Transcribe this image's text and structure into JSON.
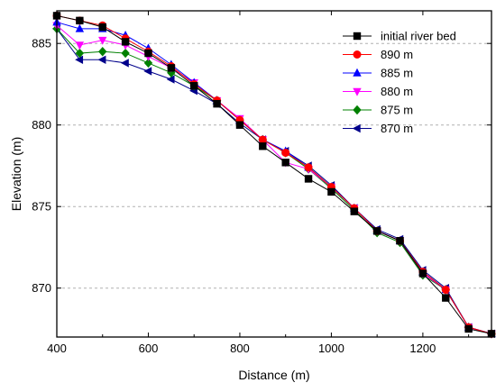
{
  "chart_data": {
    "type": "line",
    "xlabel": "Distance (m)",
    "ylabel": "Elevation (m)",
    "xlim": [
      400,
      1350
    ],
    "ylim": [
      867,
      887
    ],
    "xticks": [
      400,
      600,
      800,
      1000,
      1200
    ],
    "yticks": [
      870,
      875,
      880,
      885
    ],
    "grid": "horizontal dashed",
    "legend_position": "top-right",
    "series": [
      {
        "name": "initial river bed",
        "color": "#000000",
        "marker": "square",
        "x": [
          400,
          450,
          500,
          550,
          600,
          650,
          700,
          750,
          800,
          850,
          900,
          950,
          1000,
          1050,
          1100,
          1150,
          1200,
          1250,
          1300,
          1350
        ],
        "y": [
          886.7,
          886.4,
          886.0,
          885.1,
          884.4,
          883.5,
          882.4,
          881.3,
          880.0,
          878.7,
          877.7,
          876.7,
          875.9,
          874.7,
          873.5,
          872.9,
          870.9,
          869.4,
          867.5,
          867.2
        ]
      },
      {
        "name": "890 m",
        "color": "#ff0000",
        "marker": "circle",
        "x": [
          400,
          450,
          500,
          550,
          600,
          650,
          700,
          750,
          800,
          850,
          900,
          950,
          1000,
          1050,
          1100,
          1150,
          1200,
          1250,
          1300,
          1350
        ],
        "y": [
          886.7,
          886.4,
          886.1,
          885.3,
          884.5,
          883.6,
          882.5,
          881.5,
          880.3,
          879.1,
          878.3,
          877.4,
          876.2,
          874.9,
          873.5,
          872.9,
          871.0,
          869.9,
          867.6,
          867.2
        ]
      },
      {
        "name": "885 m",
        "color": "#0000ff",
        "marker": "triangle-up",
        "x": [
          400,
          450,
          500,
          550,
          600,
          650,
          700,
          750,
          800,
          850,
          900,
          950,
          1000,
          1050,
          1100,
          1150,
          1200,
          1250,
          1300,
          1350
        ],
        "y": [
          886.3,
          885.9,
          885.9,
          885.5,
          884.7,
          883.7,
          882.6,
          881.5,
          880.3,
          879.1,
          878.4,
          877.4,
          876.2,
          874.9,
          873.5,
          872.9,
          871.0,
          869.9,
          867.6,
          867.2
        ]
      },
      {
        "name": "880 m",
        "color": "#ff00ff",
        "marker": "triangle-down",
        "x": [
          400,
          450,
          500,
          550,
          600,
          650,
          700,
          750,
          800,
          850,
          900,
          950,
          1000,
          1050,
          1100,
          1150,
          1200,
          1250,
          1300,
          1350
        ],
        "y": [
          886.1,
          884.9,
          885.2,
          884.9,
          884.2,
          883.5,
          882.6,
          881.5,
          880.4,
          879.1,
          877.7,
          877.3,
          876.2,
          874.9,
          873.5,
          872.9,
          870.9,
          869.9,
          867.6,
          867.2
        ]
      },
      {
        "name": "875 m",
        "color": "#008000",
        "marker": "diamond",
        "x": [
          400,
          450,
          500,
          550,
          600,
          650,
          700,
          750,
          800,
          850,
          900,
          950,
          1000,
          1050,
          1100,
          1150,
          1200,
          1250,
          1300,
          1350
        ],
        "y": [
          885.9,
          884.4,
          884.5,
          884.4,
          883.8,
          883.2,
          882.4,
          881.5,
          880.3,
          879.1,
          878.3,
          877.3,
          876.1,
          874.8,
          873.4,
          872.8,
          870.8,
          869.9,
          867.6,
          867.2
        ]
      },
      {
        "name": "870 m",
        "color": "#00008b",
        "marker": "triangle-left",
        "x": [
          400,
          450,
          500,
          550,
          600,
          650,
          700,
          750,
          800,
          850,
          900,
          950,
          1000,
          1050,
          1100,
          1150,
          1200,
          1250,
          1300,
          1350
        ],
        "y": [
          885.9,
          884.0,
          884.0,
          883.8,
          883.3,
          882.8,
          882.1,
          881.3,
          880.1,
          879.1,
          878.4,
          877.5,
          876.3,
          874.9,
          873.6,
          873.0,
          871.1,
          870.0,
          867.6,
          867.2
        ]
      }
    ]
  }
}
